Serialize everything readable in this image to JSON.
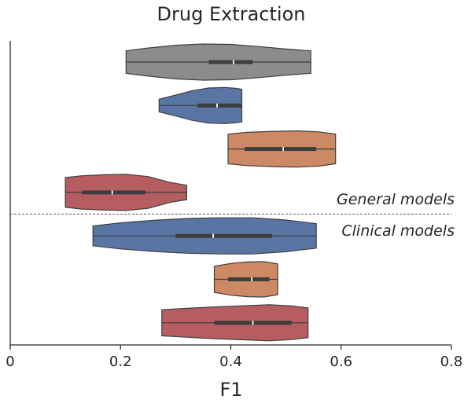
{
  "chart_data": {
    "type": "violin",
    "title": "Drug Extraction",
    "xlabel": "F1",
    "ylabel": "",
    "xlim": [
      0,
      0.8
    ],
    "x_ticks": [
      0,
      0.2,
      0.4,
      0.6,
      0.8
    ],
    "x_tick_labels": [
      "0",
      "0.2",
      "0.4",
      "0.6",
      "0.8"
    ],
    "orientation": "horizontal",
    "grid": false,
    "annotations": [
      "General models",
      "Clinical models"
    ],
    "separator_after_index": 3,
    "colors": {
      "gray": "#8c8c8c",
      "blue": "#5975a4",
      "orange": "#cc8963",
      "red": "#b55d60",
      "edge": "#3f3f3f",
      "box": "#3d3d3d",
      "axis": "#262626"
    },
    "violins": [
      {
        "color": "gray",
        "min": 0.21,
        "max": 0.545,
        "q1": 0.36,
        "median": 0.405,
        "q3": 0.44,
        "density": [
          [
            0.21,
            0.62
          ],
          [
            0.25,
            0.78
          ],
          [
            0.3,
            0.93
          ],
          [
            0.35,
            1.0
          ],
          [
            0.4,
            0.98
          ],
          [
            0.45,
            0.86
          ],
          [
            0.5,
            0.72
          ],
          [
            0.545,
            0.62
          ]
        ]
      },
      {
        "color": "blue",
        "min": 0.27,
        "max": 0.42,
        "q1": 0.34,
        "median": 0.375,
        "q3": 0.42,
        "density": [
          [
            0.27,
            0.35
          ],
          [
            0.3,
            0.58
          ],
          [
            0.33,
            0.82
          ],
          [
            0.36,
            0.97
          ],
          [
            0.39,
            1.0
          ],
          [
            0.41,
            0.95
          ],
          [
            0.42,
            0.9
          ]
        ]
      },
      {
        "color": "orange",
        "min": 0.395,
        "max": 0.59,
        "q1": 0.425,
        "median": 0.495,
        "q3": 0.555,
        "density": [
          [
            0.395,
            0.82
          ],
          [
            0.43,
            0.92
          ],
          [
            0.48,
            0.98
          ],
          [
            0.52,
            1.0
          ],
          [
            0.56,
            0.95
          ],
          [
            0.59,
            0.82
          ]
        ]
      },
      {
        "color": "red",
        "min": 0.1,
        "max": 0.32,
        "q1": 0.13,
        "median": 0.185,
        "q3": 0.245,
        "density": [
          [
            0.1,
            0.82
          ],
          [
            0.13,
            0.92
          ],
          [
            0.17,
            0.98
          ],
          [
            0.21,
            1.0
          ],
          [
            0.25,
            0.88
          ],
          [
            0.29,
            0.55
          ],
          [
            0.32,
            0.4
          ]
        ]
      },
      {
        "color": "blue",
        "min": 0.15,
        "max": 0.555,
        "q1": 0.3,
        "median": 0.368,
        "q3": 0.475,
        "density": [
          [
            0.15,
            0.55
          ],
          [
            0.2,
            0.72
          ],
          [
            0.26,
            0.86
          ],
          [
            0.32,
            0.96
          ],
          [
            0.38,
            1.0
          ],
          [
            0.44,
            1.0
          ],
          [
            0.5,
            0.88
          ],
          [
            0.555,
            0.68
          ]
        ]
      },
      {
        "color": "orange",
        "min": 0.37,
        "max": 0.485,
        "q1": 0.395,
        "median": 0.438,
        "q3": 0.47,
        "density": [
          [
            0.37,
            0.72
          ],
          [
            0.4,
            0.88
          ],
          [
            0.43,
            0.96
          ],
          [
            0.46,
            0.98
          ],
          [
            0.485,
            0.85
          ]
        ]
      },
      {
        "color": "red",
        "min": 0.275,
        "max": 0.54,
        "q1": 0.37,
        "median": 0.44,
        "q3": 0.51,
        "density": [
          [
            0.275,
            0.72
          ],
          [
            0.32,
            0.8
          ],
          [
            0.37,
            0.88
          ],
          [
            0.42,
            0.94
          ],
          [
            0.47,
            1.0
          ],
          [
            0.51,
            0.93
          ],
          [
            0.54,
            0.82
          ]
        ]
      }
    ]
  }
}
